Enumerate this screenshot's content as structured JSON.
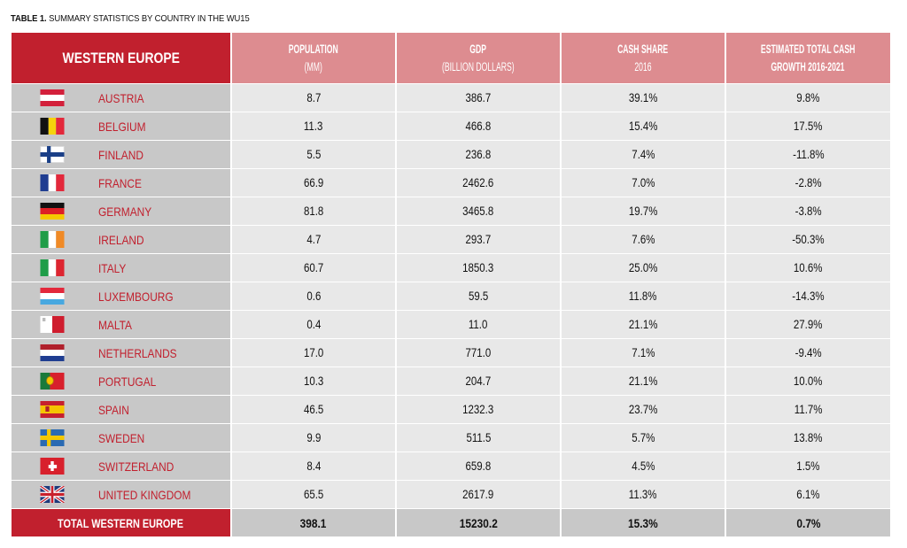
{
  "caption": {
    "prefix": "TABLE 1.",
    "text": "SUMMARY STATISTICS BY COUNTRY IN THE WU15"
  },
  "header": {
    "region": "WESTERN EUROPE",
    "population": {
      "line1": "POPULATION",
      "line2": "(MM)"
    },
    "gdp": {
      "line1": "GDP",
      "line2": "(BILLION DOLLARS)"
    },
    "cash_share": {
      "line1": "CASH SHARE",
      "line2": "2016"
    },
    "growth": {
      "line1": "ESTIMATED TOTAL CASH",
      "line2": "GROWTH 2016-2021"
    }
  },
  "rows": [
    {
      "flag": "austria-flag",
      "country": "AUSTRIA",
      "population": "8.7",
      "gdp": "386.7",
      "cash_share": "39.1%",
      "growth": "9.8%"
    },
    {
      "flag": "belgium-flag",
      "country": "BELGIUM",
      "population": "11.3",
      "gdp": "466.8",
      "cash_share": "15.4%",
      "growth": "17.5%"
    },
    {
      "flag": "finland-flag",
      "country": "FINLAND",
      "population": "5.5",
      "gdp": "236.8",
      "cash_share": "7.4%",
      "growth": "-11.8%"
    },
    {
      "flag": "france-flag",
      "country": "FRANCE",
      "population": "66.9",
      "gdp": "2462.6",
      "cash_share": "7.0%",
      "growth": "-2.8%"
    },
    {
      "flag": "germany-flag",
      "country": "GERMANY",
      "population": "81.8",
      "gdp": "3465.8",
      "cash_share": "19.7%",
      "growth": "-3.8%"
    },
    {
      "flag": "ireland-flag",
      "country": "IRELAND",
      "population": "4.7",
      "gdp": "293.7",
      "cash_share": "7.6%",
      "growth": "-50.3%"
    },
    {
      "flag": "italy-flag",
      "country": "ITALY",
      "population": "60.7",
      "gdp": "1850.3",
      "cash_share": "25.0%",
      "growth": "10.6%"
    },
    {
      "flag": "luxembourg-flag",
      "country": "LUXEMBOURG",
      "population": "0.6",
      "gdp": "59.5",
      "cash_share": "11.8%",
      "growth": "-14.3%"
    },
    {
      "flag": "malta-flag",
      "country": "MALTA",
      "population": "0.4",
      "gdp": "11.0",
      "cash_share": "21.1%",
      "growth": "27.9%"
    },
    {
      "flag": "netherlands-flag",
      "country": "NETHERLANDS",
      "population": "17.0",
      "gdp": "771.0",
      "cash_share": "7.1%",
      "growth": "-9.4%"
    },
    {
      "flag": "portugal-flag",
      "country": "PORTUGAL",
      "population": "10.3",
      "gdp": "204.7",
      "cash_share": "21.1%",
      "growth": "10.0%"
    },
    {
      "flag": "spain-flag",
      "country": "SPAIN",
      "population": "46.5",
      "gdp": "1232.3",
      "cash_share": "23.7%",
      "growth": "11.7%"
    },
    {
      "flag": "sweden-flag",
      "country": "SWEDEN",
      "population": "9.9",
      "gdp": "511.5",
      "cash_share": "5.7%",
      "growth": "13.8%"
    },
    {
      "flag": "switzerland-flag",
      "country": "SWITZERLAND",
      "population": "8.4",
      "gdp": "659.8",
      "cash_share": "4.5%",
      "growth": "1.5%"
    },
    {
      "flag": "united-kingdom-flag",
      "country": "UNITED KINGDOM",
      "population": "65.5",
      "gdp": "2617.9",
      "cash_share": "11.3%",
      "growth": "6.1%"
    }
  ],
  "total": {
    "label": "TOTAL WESTERN EUROPE",
    "population": "398.1",
    "gdp": "15230.2",
    "cash_share": "15.3%",
    "growth": "0.7%"
  },
  "colors": {
    "accent_red": "#c1202e",
    "header_pink": "#dd8c90",
    "cell_light": "#e8e8e8",
    "cell_dark": "#c8c8c8"
  }
}
